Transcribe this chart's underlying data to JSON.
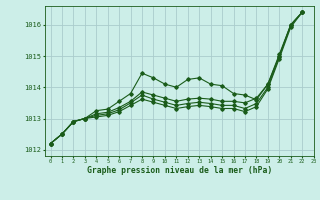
{
  "bg_color": "#cceee8",
  "grid_color": "#aacccc",
  "line_color": "#1a5c1a",
  "xlabel": "Graphe pression niveau de la mer (hPa)",
  "xlim": [
    -0.5,
    23
  ],
  "ylim": [
    1011.8,
    1016.6
  ],
  "yticks": [
    1012,
    1013,
    1014,
    1015,
    1016
  ],
  "xticks": [
    0,
    1,
    2,
    3,
    4,
    5,
    6,
    7,
    8,
    9,
    10,
    11,
    12,
    13,
    14,
    15,
    16,
    17,
    18,
    19,
    20,
    21,
    22,
    23
  ],
  "series": [
    [
      1012.2,
      1012.5,
      1012.9,
      1013.0,
      1013.25,
      1013.3,
      1013.55,
      1013.8,
      1014.45,
      1014.3,
      1014.1,
      1014.0,
      1014.25,
      1014.3,
      1014.1,
      1014.05,
      1013.8,
      1013.75,
      1013.6,
      1014.1,
      1015.0,
      1016.0,
      1016.4
    ],
    [
      1012.2,
      1012.5,
      1012.9,
      1013.0,
      1013.15,
      1013.2,
      1013.35,
      1013.55,
      1013.85,
      1013.75,
      1013.65,
      1013.55,
      1013.62,
      1013.65,
      1013.62,
      1013.55,
      1013.55,
      1013.5,
      1013.65,
      1014.1,
      1015.05,
      1016.0,
      1016.4
    ],
    [
      1012.2,
      1012.5,
      1012.9,
      1013.0,
      1013.1,
      1013.15,
      1013.28,
      1013.5,
      1013.75,
      1013.62,
      1013.52,
      1013.42,
      1013.48,
      1013.52,
      1013.48,
      1013.42,
      1013.42,
      1013.32,
      1013.48,
      1014.0,
      1014.98,
      1015.98,
      1016.4
    ],
    [
      1012.2,
      1012.5,
      1012.9,
      1013.0,
      1013.05,
      1013.1,
      1013.22,
      1013.42,
      1013.62,
      1013.52,
      1013.42,
      1013.32,
      1013.38,
      1013.42,
      1013.38,
      1013.32,
      1013.32,
      1013.22,
      1013.38,
      1013.95,
      1014.92,
      1015.92,
      1016.4
    ]
  ]
}
